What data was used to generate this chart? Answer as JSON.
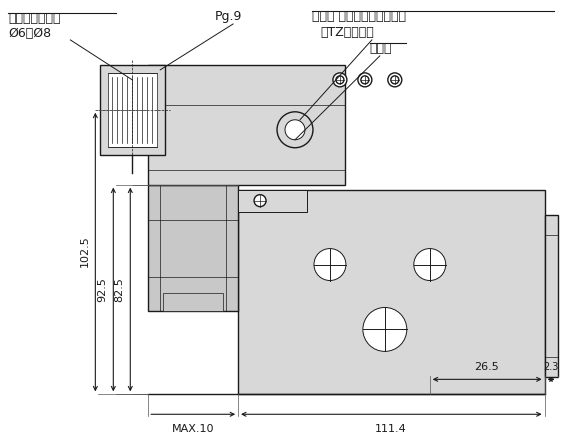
{
  "bg_color": "#ffffff",
  "lc": "#1a1a1a",
  "fill_gray": "#c8c8c8",
  "fill_light": "#d8d8d8",
  "fill_white": "#ffffff",
  "labels": {
    "top_left_title": "適用コード外径",
    "top_left_sub": "Ø6～Ø8",
    "pg9": "Pg.9",
    "lamp_surge": "ランプ サージ電圧保護回路",
    "tz": "（TZの場合）",
    "lamp": "ランプ",
    "dim_1025": "102.5",
    "dim_925": "92.5",
    "dim_825": "82.5",
    "dim_265": "26.5",
    "dim_23": "2.3",
    "dim_max10": "MAX.10",
    "dim_1114": "111.4"
  }
}
